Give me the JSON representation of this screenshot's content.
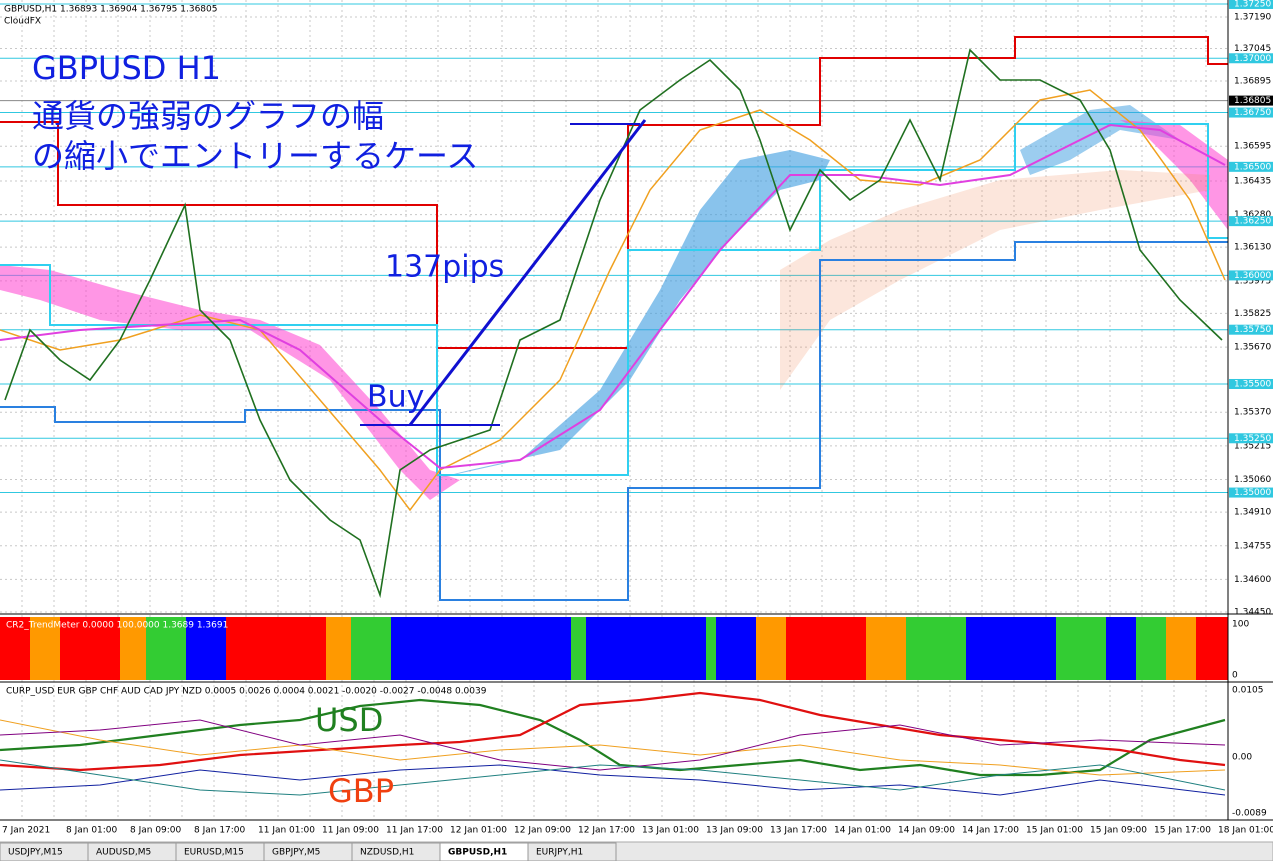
{
  "header": {
    "symbol_line": "GBPUSD,H1  1.36893 1.36904 1.36795 1.36805",
    "indicator": "CloudFX"
  },
  "annotations": {
    "title": "GBPUSD H1",
    "line1": "通貨の強弱のグラフの幅",
    "line2": "の縮小でエントリーするケース",
    "pips": "137pips",
    "buy": "Buy",
    "usd": "USD",
    "gbp": "GBP"
  },
  "price_axis": [
    "1.37190",
    "1.37045",
    "1.36895",
    "1.36595",
    "1.36435",
    "1.36280",
    "1.36130",
    "1.35975",
    "1.35825",
    "1.35670",
    "1.35370",
    "1.35215",
    "1.35060",
    "1.34910",
    "1.34755",
    "1.34600",
    "1.34450"
  ],
  "price_levels": [
    "1.37250",
    "1.37000",
    "1.36805",
    "1.36750",
    "1.36500",
    "1.36250",
    "1.36000",
    "1.35750",
    "1.35500",
    "1.35250",
    "1.35000"
  ],
  "trend_panel": {
    "label": "CR2_TrendMeter 0.0000 100.0000 1.3689 1.3691",
    "axis_top": "100",
    "axis_bottom": "0"
  },
  "strength_panel": {
    "label": "CURP_USD EUR GBP CHF AUD CAD JPY NZD 0.0005 0.0026 0.0004 0.0021 -0.0020 -0.0027 -0.0048 0.0039",
    "axis": [
      "0.0105",
      "0.00",
      "-0.0089"
    ]
  },
  "time_axis": [
    "7 Jan 2021",
    "8 Jan 01:00",
    "8 Jan 09:00",
    "8 Jan 17:00",
    "11 Jan 01:00",
    "11 Jan 09:00",
    "11 Jan 17:00",
    "12 Jan 01:00",
    "12 Jan 09:00",
    "12 Jan 17:00",
    "13 Jan 01:00",
    "13 Jan 09:00",
    "13 Jan 17:00",
    "14 Jan 01:00",
    "14 Jan 09:00",
    "14 Jan 17:00",
    "15 Jan 01:00",
    "15 Jan 09:00",
    "15 Jan 17:00",
    "18 Jan 01:00"
  ],
  "tabs": [
    "USDJPY,M15",
    "AUDUSD,M5",
    "EURUSD,M15",
    "GBPJPY,M5",
    "NZDUSD,H1",
    "GBPUSD,H1",
    "EURJPY,H1"
  ],
  "active_tab": 5
}
